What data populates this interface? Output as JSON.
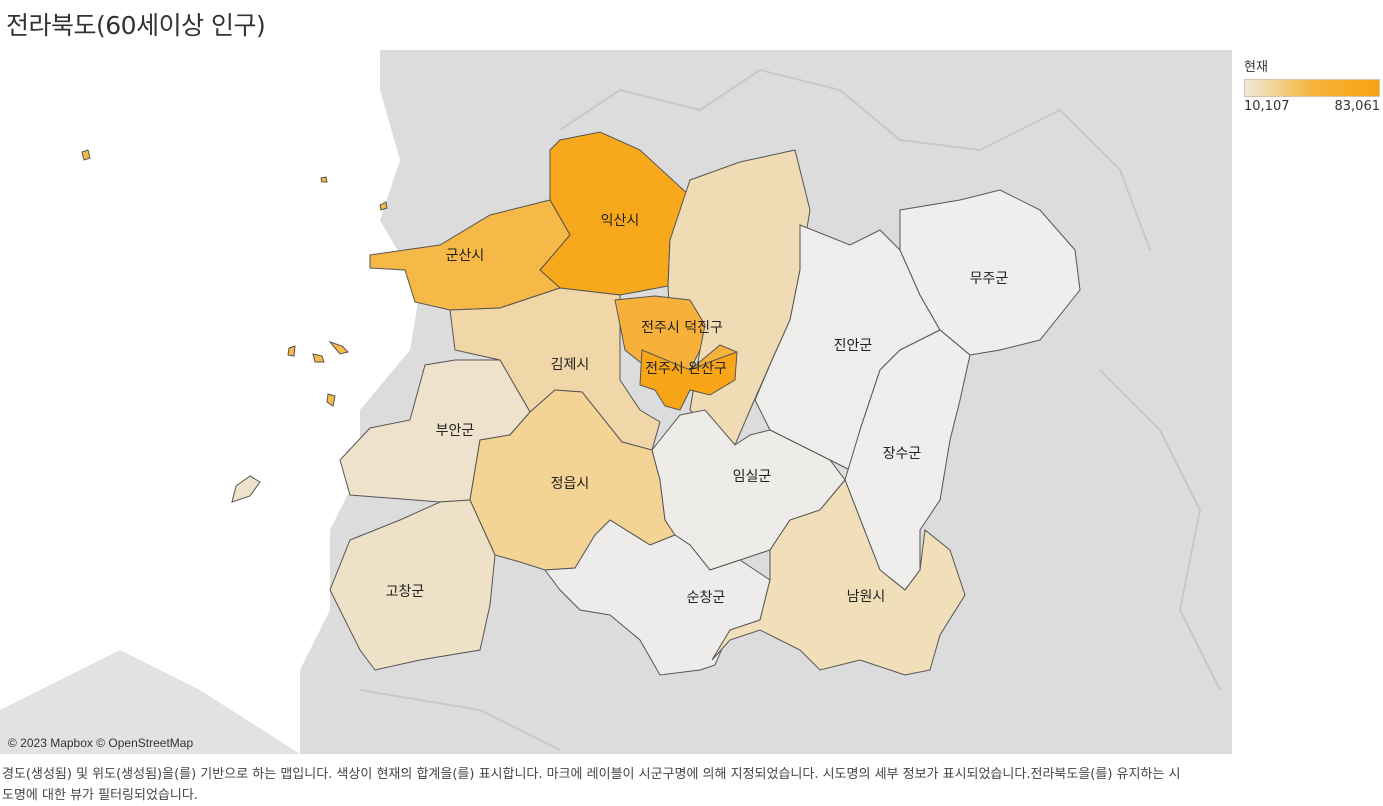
{
  "title": "전라북도(60세이상 인구)",
  "legend": {
    "title": "현재",
    "min": "10,107",
    "max": "83,061",
    "color_low": "#efe9dd",
    "color_high": "#f9a210"
  },
  "regions": [
    {
      "name": "익산시",
      "color": "#f8a81b"
    },
    {
      "name": "군산시",
      "color": "#f6b846"
    },
    {
      "name": "전주시 덕진구",
      "color": "#f7b13a"
    },
    {
      "name": "전주시 완산구",
      "color": "#f8a617"
    },
    {
      "name": "김제시",
      "color": "#f1d7a8"
    },
    {
      "name": "부안군",
      "color": "#efe2cd"
    },
    {
      "name": "정읍시",
      "color": "#f4d494"
    },
    {
      "name": "고창군",
      "color": "#efe1c8"
    },
    {
      "name": "순창군",
      "color": "#eeecea"
    },
    {
      "name": "임실군",
      "color": "#eeece8"
    },
    {
      "name": "남원시",
      "color": "#f1dfba"
    },
    {
      "name": "진안군",
      "color": "#eeedeb"
    },
    {
      "name": "무주군",
      "color": "#efeeec"
    },
    {
      "name": "장수군",
      "color": "#efeeec"
    }
  ],
  "attribution": "© 2023 Mapbox © OpenStreetMap",
  "caption": "경도(생성됨) 및 위도(생성됨)을(를) 기반으로 하는 맵입니다. 색상이 현재의 합계을(를) 표시합니다. 마크에 레이블이 시군구명에 의해 지정되었습니다. 시도명의 세부 정보가 표시되었습니다.전라북도을(를) 유지하는 시도명에 대한 뷰가 필터링되었습니다."
}
